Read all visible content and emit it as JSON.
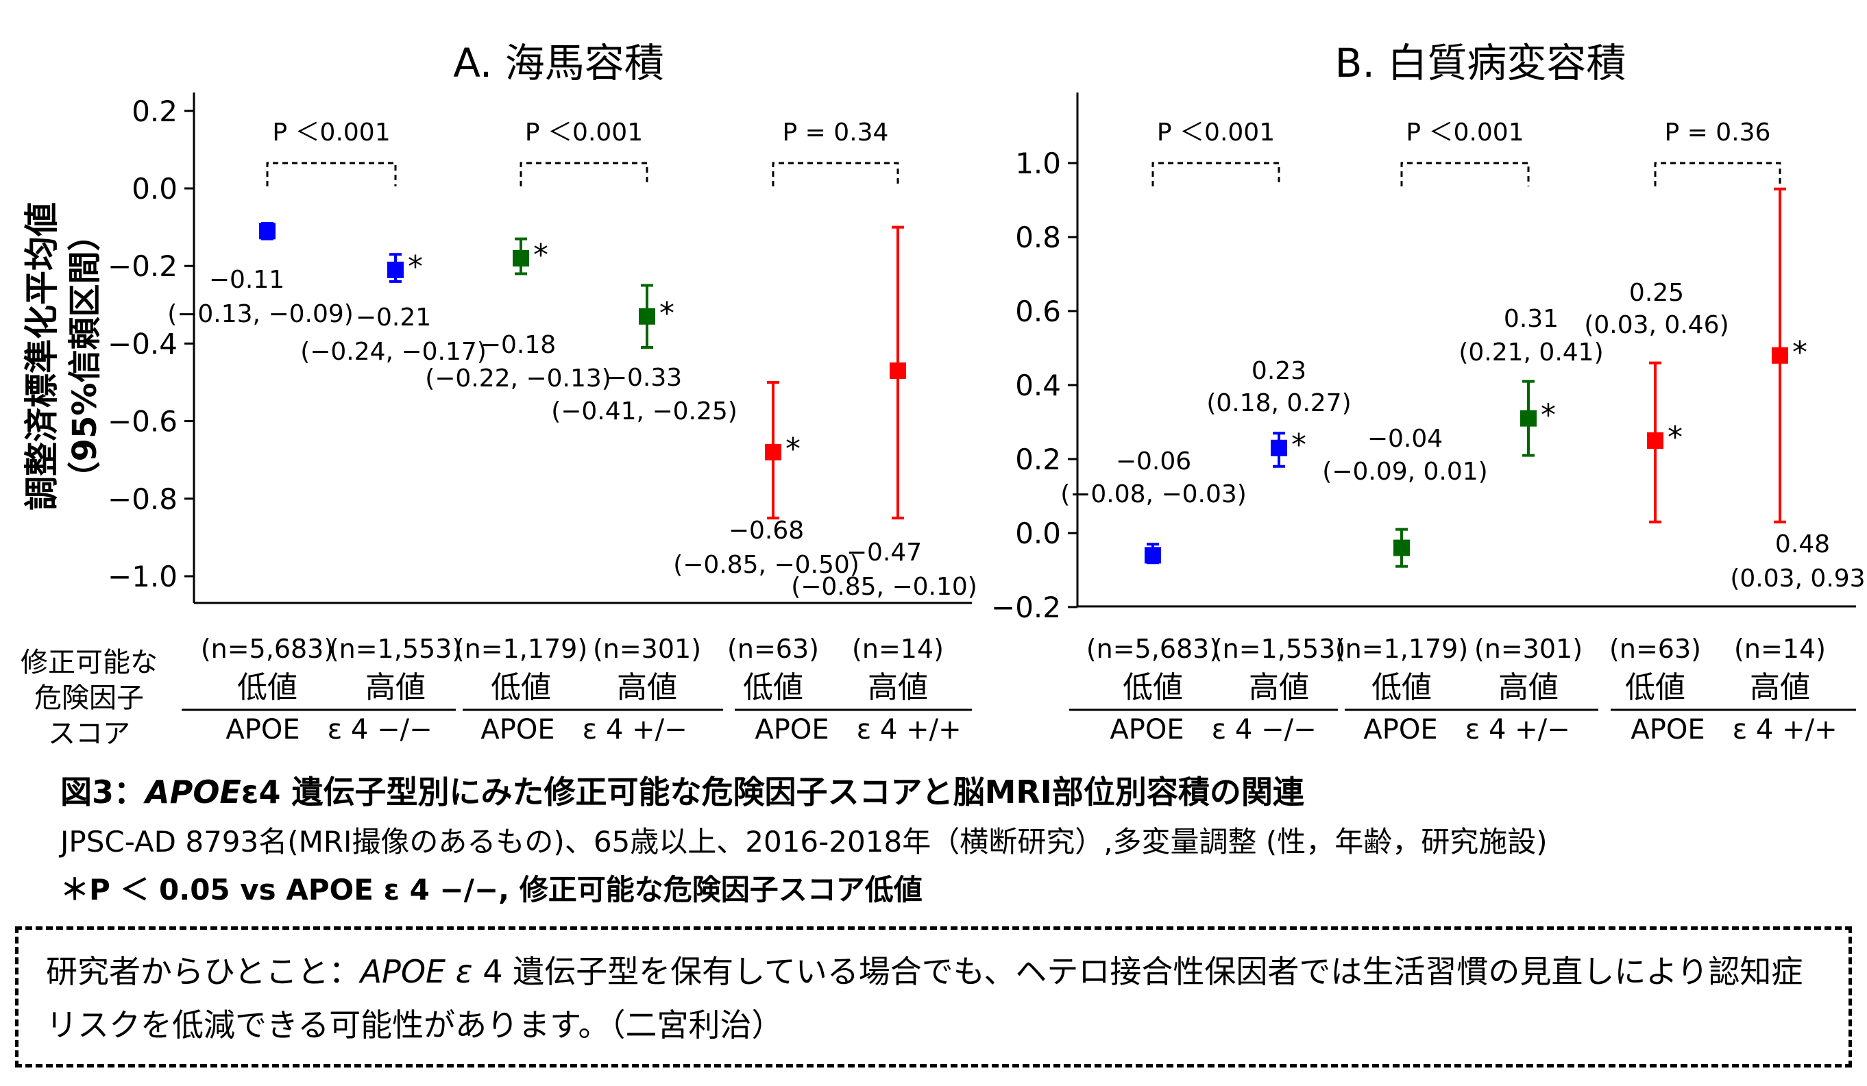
{
  "chart_data": [
    {
      "type": "scatter",
      "panel": "A",
      "title": "A. 海馬容積",
      "ylabel": "調整済標準化平均値",
      "ylabel2": "（95%信頼区間）",
      "ylim": [
        -1.05,
        0.25
      ],
      "yticks": [
        "0.2",
        "0.0",
        "−0.2",
        "−0.4",
        "−0.6",
        "−0.8",
        "−1.0"
      ],
      "points": [
        {
          "group": "APOE ε 4 −/−",
          "score": "低値",
          "n": "(n=5,683)",
          "value": -0.11,
          "ci": [
            -0.13,
            -0.09
          ],
          "color": "#0000ff",
          "sig": false,
          "label": "−0.11",
          "ci_label": "(−0.13, −0.09)"
        },
        {
          "group": "APOE ε 4 −/−",
          "score": "高値",
          "n": "(n=1,553)",
          "value": -0.21,
          "ci": [
            -0.24,
            -0.17
          ],
          "color": "#0000ff",
          "sig": true,
          "label": "−0.21",
          "ci_label": "(−0.24, −0.17)"
        },
        {
          "group": "APOE ε 4 +/−",
          "score": "低値",
          "n": "(n=1,179)",
          "value": -0.18,
          "ci": [
            -0.22,
            -0.13
          ],
          "color": "#006600",
          "sig": true,
          "label": "−0.18",
          "ci_label": "(−0.22, −0.13)"
        },
        {
          "group": "APOE ε 4 +/−",
          "score": "高値",
          "n": "(n=301)",
          "value": -0.33,
          "ci": [
            -0.41,
            -0.25
          ],
          "color": "#006600",
          "sig": true,
          "label": "−0.33",
          "ci_label": "(−0.41, −0.25)"
        },
        {
          "group": "APOE ε 4 +/+",
          "score": "低値",
          "n": "(n=63)",
          "value": -0.68,
          "ci": [
            -0.85,
            -0.5
          ],
          "color": "#ff0000",
          "sig": true,
          "label": "−0.68",
          "ci_label": "(−0.85, −0.50)"
        },
        {
          "group": "APOE ε 4 +/+",
          "score": "高値",
          "n": "(n=14)",
          "value": -0.47,
          "ci": [
            -0.85,
            -0.1
          ],
          "color": "#ff0000",
          "sig": false,
          "label": "−0.47",
          "ci_label": "(−0.85, −0.10)"
        }
      ],
      "pvalues": [
        "P ＜0.001",
        "P ＜0.001",
        "P = 0.34"
      ]
    },
    {
      "type": "scatter",
      "panel": "B",
      "title": "B. 白質病変容積",
      "ylim": [
        -0.2,
        1.2
      ],
      "yticks": [
        "1.0",
        "0.8",
        "0.6",
        "0.4",
        "0.2",
        "0.0",
        "−0.2"
      ],
      "points": [
        {
          "group": "APOE ε 4 −/−",
          "score": "低値",
          "n": "(n=5,683)",
          "value": -0.06,
          "ci": [
            -0.08,
            -0.03
          ],
          "color": "#0000ff",
          "sig": false,
          "label": "−0.06",
          "ci_label": "(−0.08, −0.03)"
        },
        {
          "group": "APOE ε 4 −/−",
          "score": "高値",
          "n": "(n=1,553)",
          "value": 0.23,
          "ci": [
            0.18,
            0.27
          ],
          "color": "#0000ff",
          "sig": true,
          "label": "0.23",
          "ci_label": "(0.18, 0.27)"
        },
        {
          "group": "APOE ε 4 +/−",
          "score": "低値",
          "n": "(n=1,179)",
          "value": -0.04,
          "ci": [
            -0.09,
            0.01
          ],
          "color": "#006600",
          "sig": false,
          "label": "−0.04",
          "ci_label": "(−0.09, 0.01)"
        },
        {
          "group": "APOE ε 4 +/−",
          "score": "高値",
          "n": "(n=301)",
          "value": 0.31,
          "ci": [
            0.21,
            0.41
          ],
          "color": "#006600",
          "sig": true,
          "label": "0.31",
          "ci_label": "(0.21, 0.41)"
        },
        {
          "group": "APOE ε 4 +/+",
          "score": "低値",
          "n": "(n=63)",
          "value": 0.25,
          "ci": [
            0.03,
            0.46
          ],
          "color": "#ff0000",
          "sig": true,
          "label": "0.25",
          "ci_label": "(0.03, 0.46)"
        },
        {
          "group": "APOE ε 4 +/+",
          "score": "高値",
          "n": "(n=14)",
          "value": 0.48,
          "ci": [
            0.03,
            0.93
          ],
          "color": "#ff0000",
          "sig": true,
          "label": "0.48",
          "ci_label": "(0.03, 0.93)"
        }
      ],
      "pvalues": [
        "P ＜0.001",
        "P ＜0.001",
        "P = 0.36"
      ]
    }
  ],
  "row_header": [
    "修正可能な",
    "危険因子",
    "スコア"
  ],
  "groups": [
    "APOE　ε 4 −/−",
    "APOE　ε 4 +/−",
    "APOE　ε 4 +/+"
  ],
  "sig_marker": "*",
  "caption": {
    "title_prefix": "図3：",
    "title_italic": "APOE",
    "title_rest": "ε4 遺伝子型別にみた修正可能な危険因子スコアと脳MRI部位別容積の関連",
    "line1": "JPSC-AD 8793名(MRI撮像のあるもの)、65歳以上、2016-2018年（横断研究）,多変量調整 (性，年齢，研究施設)",
    "note": "＊P ＜ 0.05 vs APOE ε 4 −/−, 修正可能な危険因子スコア低値"
  },
  "comment": {
    "prefix": "研究者からひとこと：",
    "italic": "APOE ε",
    "rest": " 4 遺伝子型を保有している場合でも、ヘテロ接合性保因者では生活習慣の見直しにより認知症リスクを低減できる可能性があります。（二宮利治）"
  }
}
